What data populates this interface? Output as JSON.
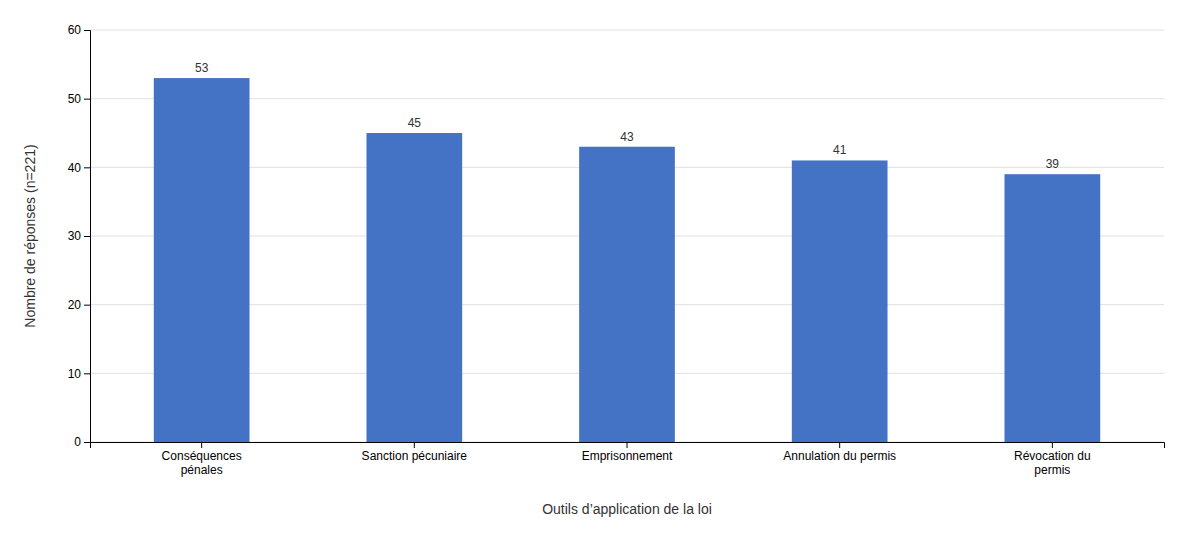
{
  "chart_data": {
    "type": "bar",
    "categories": [
      "Conséquences\npénales",
      "Sanction pécuniaire",
      "Emprisonnement",
      "Annulation du permis",
      "Révocation du\npermis"
    ],
    "values": [
      53,
      45,
      43,
      41,
      39
    ],
    "color": "#4472C4",
    "ylabel": "Nombre de réponses (n=221)",
    "xlabel": "Outils d’application de la loi",
    "ylim": [
      0,
      60
    ],
    "yticks": [
      0,
      10,
      20,
      30,
      40,
      50,
      60
    ],
    "grid": true,
    "data_labels": true
  }
}
